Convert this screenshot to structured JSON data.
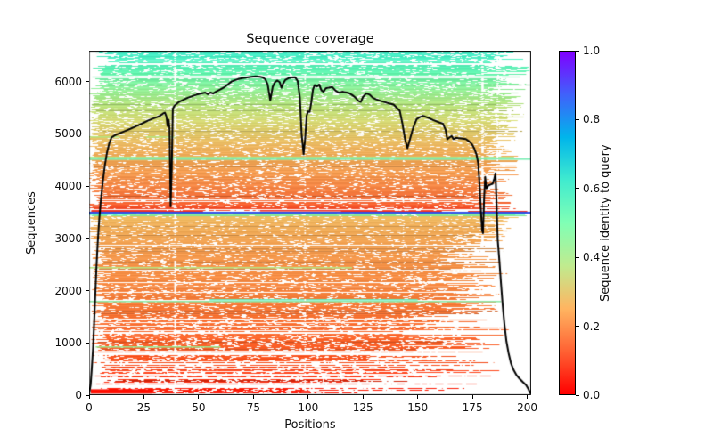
{
  "chart_data": {
    "type": "heatmap",
    "title": "Sequence coverage",
    "xlabel": "Positions",
    "ylabel": "Sequences",
    "colorbar_label": "Sequence identity to query",
    "xlim": [
      0,
      201.8
    ],
    "ylim": [
      0,
      6590
    ],
    "xticks": [
      0,
      25,
      50,
      75,
      100,
      125,
      150,
      175,
      200
    ],
    "xtick_labels": [
      "0",
      "25",
      "50",
      "75",
      "100",
      "125",
      "150",
      "175",
      "200"
    ],
    "yticks": [
      0,
      1000,
      2000,
      3000,
      4000,
      5000,
      6000
    ],
    "ytick_labels": [
      "0",
      "1000",
      "2000",
      "3000",
      "4000",
      "5000",
      "6000"
    ],
    "colorbar_ticks": [
      0.0,
      0.2,
      0.4,
      0.6,
      0.8,
      1.0
    ],
    "colorbar_tick_labels": [
      "0.0",
      "0.2",
      "0.4",
      "0.6",
      "0.8",
      "1.0"
    ],
    "colormap_name": "rainbow_r",
    "colormap_stops": [
      {
        "v": 0.0,
        "color": "#ff0000"
      },
      {
        "v": 0.125,
        "color": "#ff6133"
      },
      {
        "v": 0.25,
        "color": "#ffb561"
      },
      {
        "v": 0.375,
        "color": "#c0eb8f"
      },
      {
        "v": 0.5,
        "color": "#80ffb5"
      },
      {
        "v": 0.625,
        "color": "#40ebcf"
      },
      {
        "v": 0.75,
        "color": "#00b5eb"
      },
      {
        "v": 0.875,
        "color": "#4061fb"
      },
      {
        "v": 1.0,
        "color": "#8000ff"
      }
    ],
    "identity_color_stops": [
      [
        0,
        "#ff0f00"
      ],
      [
        600,
        "#fb4f1c"
      ],
      [
        1200,
        "#fa682c"
      ],
      [
        2000,
        "#f7853f"
      ],
      [
        2700,
        "#f49a4d"
      ],
      [
        3300,
        "#eeb05a"
      ],
      [
        3425,
        "#e9bd62"
      ],
      [
        3430,
        "#8deb9d"
      ],
      [
        3477,
        "#8deb9d"
      ],
      [
        3502,
        "#f23b22"
      ],
      [
        3650,
        "#f96331"
      ],
      [
        3900,
        "#f67f42"
      ],
      [
        4250,
        "#f29a4f"
      ],
      [
        4700,
        "#edb05b"
      ],
      [
        5100,
        "#ded06e"
      ],
      [
        5500,
        "#c0e47c"
      ],
      [
        5850,
        "#90ee96"
      ],
      [
        6150,
        "#62f2ac"
      ],
      [
        6590,
        "#3eeac9"
      ]
    ],
    "msa_bands": [
      {
        "from": 0,
        "to": 130,
        "rowProb": 0.45,
        "gapRate": 0.12,
        "sMin": 1,
        "sMax": 30,
        "eMin": 90,
        "eMax": 190
      },
      {
        "from": 130,
        "to": 400,
        "rowProb": 0.55,
        "gapRate": 0.11,
        "sMin": 1,
        "sMax": 14,
        "eMin": 110,
        "eMax": 188
      },
      {
        "from": 400,
        "to": 800,
        "rowProb": 0.68,
        "gapRate": 0.1,
        "sMin": 1,
        "sMax": 10,
        "eMin": 125,
        "eMax": 190
      },
      {
        "from": 800,
        "to": 1500,
        "rowProb": 0.82,
        "gapRate": 0.08,
        "sMin": 1,
        "sMax": 9,
        "eMin": 140,
        "eMax": 192
      },
      {
        "from": 1500,
        "to": 2300,
        "rowProb": 0.92,
        "gapRate": 0.06,
        "sMin": 1,
        "sMax": 8,
        "eMin": 152,
        "eMax": 190
      },
      {
        "from": 2300,
        "to": 3000,
        "rowProb": 0.97,
        "gapRate": 0.05,
        "sMin": 1,
        "sMax": 7,
        "eMin": 160,
        "eMax": 193
      },
      {
        "from": 3000,
        "to": 3425,
        "rowProb": 1.0,
        "gapRate": 0.035,
        "sMin": 0,
        "sMax": 6,
        "eMin": 170,
        "eMax": 197
      },
      {
        "from": 3425,
        "to": 3478,
        "rowProb": 1.0,
        "gapRate": 0.02,
        "sMin": 0,
        "sMax": 3,
        "eMin": 195,
        "eMax": 201.8
      },
      {
        "from": 3478,
        "to": 3502,
        "rowProb": 0.0,
        "gapRate": 0.0,
        "sMin": 0,
        "sMax": 0,
        "eMin": 0,
        "eMax": 0
      },
      {
        "from": 3502,
        "to": 3565,
        "rowProb": 0.5,
        "gapRate": 0.12,
        "sMin": 1,
        "sMax": 10,
        "eMin": 140,
        "eMax": 200
      },
      {
        "from": 3565,
        "to": 4200,
        "rowProb": 0.95,
        "gapRate": 0.055,
        "sMin": 0,
        "sMax": 7,
        "eMin": 176,
        "eMax": 195
      },
      {
        "from": 4200,
        "to": 5000,
        "rowProb": 1.0,
        "gapRate": 0.05,
        "sMin": 0,
        "sMax": 5,
        "eMin": 180,
        "eMax": 197
      },
      {
        "from": 5000,
        "to": 5800,
        "rowProb": 1.0,
        "gapRate": 0.055,
        "sMin": 0,
        "sMax": 5,
        "eMin": 180,
        "eMax": 200
      },
      {
        "from": 5800,
        "to": 6300,
        "rowProb": 0.95,
        "gapRate": 0.06,
        "sMin": 0,
        "sMax": 8,
        "eMin": 179,
        "eMax": 201.8
      },
      {
        "from": 6300,
        "to": 6590,
        "rowProb": 0.88,
        "gapRate": 0.08,
        "sMin": 0,
        "sMax": 14,
        "eMin": 176,
        "eMax": 201.8
      }
    ],
    "red_block": {
      "seq_from": 30,
      "seq_to": 112,
      "pos_from": 0.8,
      "pos_to": 28.5,
      "color": "#ff0c00"
    },
    "bottom_red_line": {
      "seq": 12,
      "color": "#fb4314",
      "segments": [
        [
          89,
          112
        ],
        [
          119,
          148
        ],
        [
          151,
          160
        ],
        [
          163,
          181
        ],
        [
          185,
          189
        ],
        [
          196,
          199
        ]
      ]
    },
    "query_line": {
      "seq": 3490,
      "color": "#3050e8"
    },
    "accent_rows": [
      {
        "seq": 3472,
        "color": "#55f0c5",
        "segments": [
          [
            0,
            18
          ],
          [
            186,
            199
          ]
        ]
      },
      {
        "seq": 3520,
        "color": "#f03024",
        "segments": [
          [
            1,
            52
          ],
          [
            115,
            161
          ],
          [
            173,
            200
          ]
        ]
      },
      {
        "seq": 3545,
        "color": "#f03024",
        "segments": [
          [
            1,
            30
          ],
          [
            78,
            128
          ]
        ]
      },
      {
        "seq": 4530,
        "color": "#7deeb5",
        "segments": [
          [
            0,
            201.8
          ]
        ]
      },
      {
        "seq": 4562,
        "color": "#a8e88c",
        "segments": [
          [
            0,
            194
          ]
        ]
      },
      {
        "seq": 4950,
        "color": "#b9e77f",
        "segments": [
          [
            0,
            14
          ],
          [
            26,
            40
          ]
        ]
      },
      {
        "seq": 1806,
        "color": "#8ee8a8",
        "segments": [
          [
            0,
            188
          ]
        ]
      },
      {
        "seq": 1840,
        "color": "#66e9bd",
        "segments": [
          [
            55,
            150
          ]
        ]
      },
      {
        "seq": 2460,
        "color": "#b8e583",
        "segments": [
          [
            0,
            120
          ]
        ]
      },
      {
        "seq": 940,
        "color": "#9be890",
        "segments": [
          [
            3,
            60
          ]
        ]
      }
    ],
    "gap_streaks": [
      {
        "pos": 39.3,
        "width": 2.2,
        "p": 0.55,
        "seq_from": 0,
        "seq_to": 6590
      },
      {
        "pos": 36.8,
        "width": 1.2,
        "p": 0.25,
        "seq_from": 2600,
        "seq_to": 3430
      },
      {
        "pos": 98.6,
        "width": 1.7,
        "p": 0.32,
        "seq_from": 0,
        "seq_to": 6590
      },
      {
        "pos": 115.5,
        "width": 1.5,
        "p": 0.15,
        "seq_from": 0,
        "seq_to": 1400
      },
      {
        "pos": 143.5,
        "width": 1.2,
        "p": 0.2,
        "seq_from": 0,
        "seq_to": 6300
      },
      {
        "pos": 179.6,
        "width": 2.6,
        "p": 0.5,
        "seq_from": 2600,
        "seq_to": 6590
      },
      {
        "pos": 186.4,
        "width": 1.8,
        "p": 0.45,
        "seq_from": 1800,
        "seq_to": 6590
      }
    ],
    "coverage_line": {
      "color": "#000000",
      "width": 2,
      "points": [
        [
          0,
          25
        ],
        [
          0.7,
          200
        ],
        [
          1.2,
          500
        ],
        [
          1.8,
          900
        ],
        [
          2.3,
          1400
        ],
        [
          2.8,
          1900
        ],
        [
          3.3,
          2400
        ],
        [
          3.9,
          2900
        ],
        [
          4.6,
          3350
        ],
        [
          5.4,
          3750
        ],
        [
          6.3,
          4100
        ],
        [
          7.2,
          4400
        ],
        [
          8.2,
          4650
        ],
        [
          9.2,
          4820
        ],
        [
          10.2,
          4930
        ],
        [
          11.5,
          4965
        ],
        [
          13,
          4995
        ],
        [
          15,
          5030
        ],
        [
          17,
          5065
        ],
        [
          19,
          5100
        ],
        [
          21,
          5135
        ],
        [
          23,
          5175
        ],
        [
          25,
          5215
        ],
        [
          27,
          5255
        ],
        [
          29,
          5290
        ],
        [
          31,
          5320
        ],
        [
          32.5,
          5350
        ],
        [
          33.8,
          5390
        ],
        [
          34.6,
          5405
        ],
        [
          35.3,
          5330
        ],
        [
          35.8,
          5150
        ],
        [
          36.3,
          5270
        ],
        [
          36.7,
          5100
        ],
        [
          37.2,
          3610
        ],
        [
          37.7,
          4300
        ],
        [
          38.2,
          5480
        ],
        [
          39,
          5540
        ],
        [
          41,
          5610
        ],
        [
          43,
          5650
        ],
        [
          45,
          5690
        ],
        [
          47,
          5720
        ],
        [
          49,
          5750
        ],
        [
          51,
          5770
        ],
        [
          53,
          5790
        ],
        [
          54.2,
          5755
        ],
        [
          55.4,
          5790
        ],
        [
          56.6,
          5770
        ],
        [
          58,
          5810
        ],
        [
          60,
          5850
        ],
        [
          62,
          5900
        ],
        [
          63.5,
          5950
        ],
        [
          65,
          6000
        ],
        [
          66.5,
          6025
        ],
        [
          68,
          6048
        ],
        [
          70,
          6065
        ],
        [
          72,
          6080
        ],
        [
          74,
          6090
        ],
        [
          76,
          6100
        ],
        [
          78,
          6093
        ],
        [
          79.3,
          6080
        ],
        [
          80.5,
          6040
        ],
        [
          81.5,
          5950
        ],
        [
          82.7,
          5640
        ],
        [
          83.8,
          5900
        ],
        [
          84.8,
          5985
        ],
        [
          85.8,
          6020
        ],
        [
          87,
          5990
        ],
        [
          87.8,
          5880
        ],
        [
          88.6,
          5965
        ],
        [
          89.5,
          6030
        ],
        [
          91,
          6065
        ],
        [
          92.5,
          6080
        ],
        [
          94,
          6085
        ],
        [
          95.2,
          6010
        ],
        [
          96.2,
          5700
        ],
        [
          97,
          5000
        ],
        [
          97.9,
          4610
        ],
        [
          98.6,
          4900
        ],
        [
          99.3,
          5350
        ],
        [
          100,
          5430
        ],
        [
          100.7,
          5420
        ],
        [
          101.4,
          5600
        ],
        [
          102.2,
          5850
        ],
        [
          103,
          5935
        ],
        [
          104,
          5905
        ],
        [
          105,
          5945
        ],
        [
          106,
          5835
        ],
        [
          107,
          5805
        ],
        [
          108,
          5870
        ],
        [
          109.5,
          5885
        ],
        [
          111,
          5895
        ],
        [
          112.5,
          5825
        ],
        [
          114,
          5785
        ],
        [
          115.5,
          5805
        ],
        [
          117,
          5795
        ],
        [
          118.5,
          5780
        ],
        [
          120,
          5745
        ],
        [
          121.5,
          5695
        ],
        [
          123,
          5625
        ],
        [
          124,
          5610
        ],
        [
          125,
          5705
        ],
        [
          126.5,
          5775
        ],
        [
          128,
          5750
        ],
        [
          129.5,
          5690
        ],
        [
          131,
          5660
        ],
        [
          133,
          5630
        ],
        [
          135,
          5605
        ],
        [
          137,
          5580
        ],
        [
          139,
          5560
        ],
        [
          140.5,
          5495
        ],
        [
          141.8,
          5440
        ],
        [
          143,
          5200
        ],
        [
          144.2,
          4900
        ],
        [
          145.3,
          4725
        ],
        [
          146.5,
          4905
        ],
        [
          148,
          5125
        ],
        [
          149.5,
          5280
        ],
        [
          151,
          5320
        ],
        [
          152.5,
          5345
        ],
        [
          154,
          5320
        ],
        [
          155.5,
          5295
        ],
        [
          157,
          5265
        ],
        [
          158.5,
          5240
        ],
        [
          160,
          5215
        ],
        [
          161.5,
          5195
        ],
        [
          162.7,
          5080
        ],
        [
          163.5,
          4895
        ],
        [
          164.5,
          4930
        ],
        [
          165.5,
          4960
        ],
        [
          166.3,
          4900
        ],
        [
          167.5,
          4925
        ],
        [
          169,
          4915
        ],
        [
          170.5,
          4910
        ],
        [
          172,
          4900
        ],
        [
          173.5,
          4855
        ],
        [
          174.8,
          4800
        ],
        [
          175.8,
          4720
        ],
        [
          176.8,
          4610
        ],
        [
          177.6,
          4440
        ],
        [
          178.3,
          4000
        ],
        [
          178.9,
          3500
        ],
        [
          179.4,
          3150
        ],
        [
          179.8,
          3100
        ],
        [
          180.3,
          3750
        ],
        [
          180.8,
          4175
        ],
        [
          181.4,
          3955
        ],
        [
          182.2,
          4010
        ],
        [
          183.2,
          4030
        ],
        [
          184.2,
          4045
        ],
        [
          185,
          4150
        ],
        [
          185.5,
          4245
        ],
        [
          186,
          3700
        ],
        [
          186.5,
          2980
        ],
        [
          187.2,
          2620
        ],
        [
          188,
          2150
        ],
        [
          188.8,
          1720
        ],
        [
          189.6,
          1350
        ],
        [
          190.5,
          1030
        ],
        [
          191.5,
          800
        ],
        [
          192.5,
          620
        ],
        [
          193.8,
          480
        ],
        [
          195,
          390
        ],
        [
          196.5,
          315
        ],
        [
          198,
          250
        ],
        [
          199.5,
          190
        ],
        [
          200.5,
          120
        ],
        [
          201.3,
          40
        ]
      ]
    }
  }
}
